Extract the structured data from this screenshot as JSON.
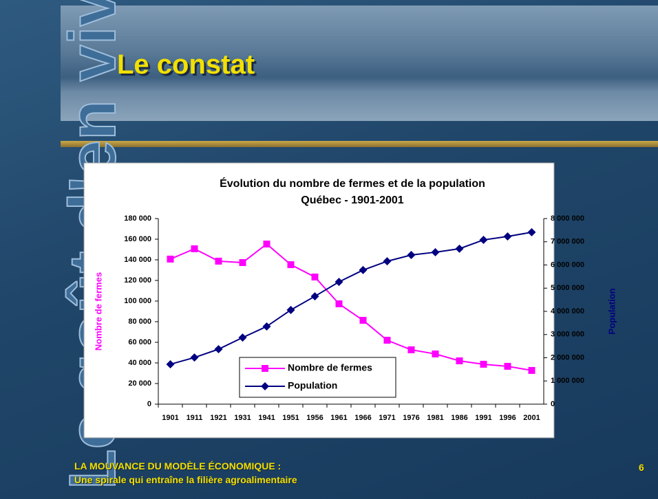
{
  "slide": {
    "title": "Le constat",
    "side_text": "Le goût d'en vivre",
    "footer_line1": "LA MOUVANCE DU MODÈLE ÉCONOMIQUE :",
    "footer_line2": "Une spirale qui entraîne la filière agroalimentaire",
    "page_number": "6"
  },
  "chart_data": {
    "type": "line",
    "title": "Évolution du nombre de fermes et de la population",
    "subtitle": "Québec - 1901-2001",
    "ylabel": "Nombre de fermes",
    "y2label": "Population",
    "categories": [
      "1901",
      "1911",
      "1921",
      "1931",
      "1941",
      "1951",
      "1956",
      "1961",
      "1966",
      "1971",
      "1976",
      "1981",
      "1986",
      "1991",
      "1996",
      "2001"
    ],
    "series": [
      {
        "name": "Nombre de fermes",
        "color": "#ff00ff",
        "marker": "square",
        "axis": "y",
        "values": [
          140700,
          150700,
          138700,
          137300,
          155300,
          135300,
          123300,
          97300,
          81300,
          62000,
          52700,
          48700,
          42000,
          38700,
          36700,
          32700
        ]
      },
      {
        "name": "Population",
        "color": "#000080",
        "marker": "diamond",
        "axis": "y2",
        "values": [
          1720000,
          2010000,
          2370000,
          2870000,
          3350000,
          4060000,
          4650000,
          5270000,
          5780000,
          6160000,
          6430000,
          6550000,
          6700000,
          7080000,
          7230000,
          7410000
        ]
      }
    ],
    "ylim": [
      0,
      180000
    ],
    "yticks": [
      0,
      {
        "value": 20000,
        "label": "20 000"
      },
      {
        "value": 40000,
        "label": "40 000"
      },
      {
        "value": 60000,
        "label": "60 000"
      },
      {
        "value": 80000,
        "label": "80 000"
      },
      {
        "value": 100000,
        "label": "100 000"
      },
      {
        "value": 120000,
        "label": "120 000"
      },
      {
        "value": 140000,
        "label": "140 000"
      },
      {
        "value": 160000,
        "label": "160 000"
      },
      {
        "value": 180000,
        "label": "180 000"
      }
    ],
    "y2lim": [
      0,
      8000000
    ],
    "y2ticks": [
      0,
      {
        "value": 1000000,
        "label": "1 000 000"
      },
      {
        "value": 2000000,
        "label": "2 000 000"
      },
      {
        "value": 3000000,
        "label": "3 000 000"
      },
      {
        "value": 4000000,
        "label": "4 000 000"
      },
      {
        "value": 5000000,
        "label": "5 000 000"
      },
      {
        "value": 6000000,
        "label": "6 000 000"
      },
      {
        "value": 7000000,
        "label": "7 000 000"
      },
      {
        "value": 8000000,
        "label": "8 000 000"
      }
    ],
    "legend": "bottom-center",
    "grid": false
  }
}
